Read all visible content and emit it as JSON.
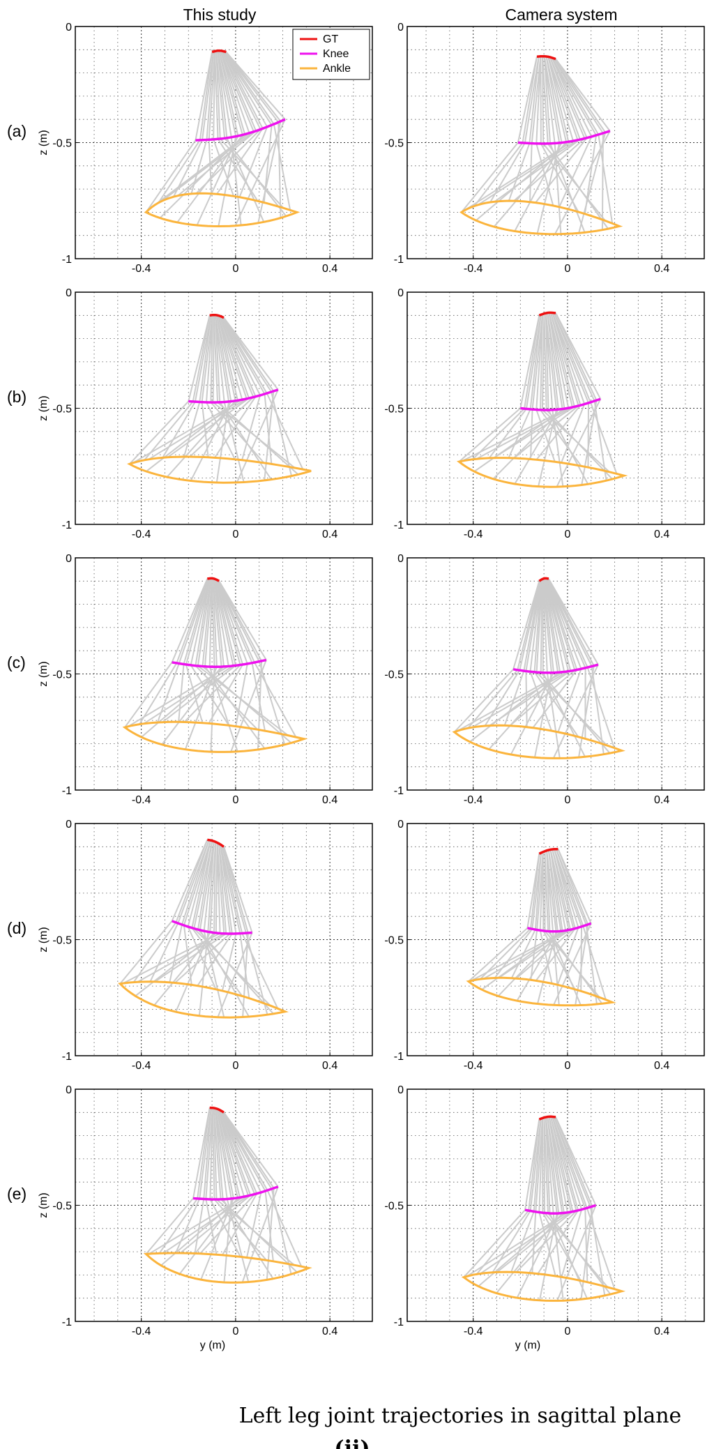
{
  "column_titles": [
    "This study",
    "Camera system"
  ],
  "row_labels": [
    "(a)",
    "(b)",
    "(c)",
    "(d)",
    "(e)"
  ],
  "caption": "Left leg joint trajectories in sagittal plane",
  "caption_sub_prefix": "(",
  "caption_sub_label": "ii",
  "caption_sub_suffix": ")",
  "colors": {
    "GT": "#ee1111",
    "Knee": "#ee11ee",
    "Ankle": "#fbb43c",
    "segment": "#cbcbcb",
    "grid": "#555555"
  },
  "chart_data": {
    "type": "line",
    "xlabel": "y (m)",
    "ylabel": "z (m)",
    "xlim": [
      -0.68,
      0.58
    ],
    "ylim": [
      -1,
      0
    ],
    "xticks": [
      -0.4,
      0,
      0.4
    ],
    "xtick_labels": [
      "-0.4",
      "0",
      "0.4"
    ],
    "yticks": [
      0,
      -0.5,
      -1
    ],
    "ytick_labels": [
      "0",
      "-0.5",
      "-1"
    ],
    "grid": true,
    "legend": {
      "entries": [
        "GT",
        "Knee",
        "Ankle"
      ],
      "placement": "top-right",
      "panel": "(a) This study"
    },
    "panels": [
      {
        "row": "(a)",
        "source": "This study",
        "GT": {
          "y": [
            -0.1,
            -0.04
          ],
          "z": [
            -0.11,
            -0.11
          ]
        },
        "Knee": {
          "y": [
            -0.17,
            0.21
          ],
          "z": [
            -0.49,
            -0.4
          ]
        },
        "Ankle": {
          "y_min": -0.38,
          "y_max": 0.26,
          "z_top": -0.68,
          "z_bottom": -0.88,
          "left_z": -0.8,
          "right_z": -0.8
        }
      },
      {
        "row": "(a)",
        "source": "Camera system",
        "GT": {
          "y": [
            -0.13,
            -0.05
          ],
          "z": [
            -0.13,
            -0.14
          ]
        },
        "Knee": {
          "y": [
            -0.21,
            0.18
          ],
          "z": [
            -0.5,
            -0.45
          ]
        },
        "Ankle": {
          "y_min": -0.45,
          "y_max": 0.22,
          "z_top": -0.72,
          "z_bottom": -0.91,
          "left_z": -0.8,
          "right_z": -0.86
        }
      },
      {
        "row": "(b)",
        "source": "This study",
        "GT": {
          "y": [
            -0.11,
            -0.05
          ],
          "z": [
            -0.1,
            -0.11
          ]
        },
        "Knee": {
          "y": [
            -0.2,
            0.18
          ],
          "z": [
            -0.47,
            -0.42
          ]
        },
        "Ankle": {
          "y_min": -0.45,
          "y_max": 0.32,
          "z_top": -0.69,
          "z_bottom": -0.84,
          "left_z": -0.74,
          "right_z": -0.77
        }
      },
      {
        "row": "(b)",
        "source": "Camera system",
        "GT": {
          "y": [
            -0.12,
            -0.05
          ],
          "z": [
            -0.1,
            -0.09
          ]
        },
        "Knee": {
          "y": [
            -0.2,
            0.14
          ],
          "z": [
            -0.5,
            -0.46
          ]
        },
        "Ankle": {
          "y_min": -0.46,
          "y_max": 0.24,
          "z_top": -0.7,
          "z_bottom": -0.86,
          "left_z": -0.73,
          "right_z": -0.79
        }
      },
      {
        "row": "(c)",
        "source": "This study",
        "GT": {
          "y": [
            -0.12,
            -0.07
          ],
          "z": [
            -0.09,
            -0.1
          ]
        },
        "Knee": {
          "y": [
            -0.27,
            0.13
          ],
          "z": [
            -0.45,
            -0.44
          ]
        },
        "Ankle": {
          "y_min": -0.47,
          "y_max": 0.29,
          "z_top": -0.69,
          "z_bottom": -0.86,
          "left_z": -0.73,
          "right_z": -0.78
        }
      },
      {
        "row": "(c)",
        "source": "Camera system",
        "GT": {
          "y": [
            -0.12,
            -0.08
          ],
          "z": [
            -0.1,
            -0.09
          ]
        },
        "Knee": {
          "y": [
            -0.23,
            0.13
          ],
          "z": [
            -0.48,
            -0.46
          ]
        },
        "Ankle": {
          "y_min": -0.48,
          "y_max": 0.23,
          "z_top": -0.7,
          "z_bottom": -0.88,
          "left_z": -0.75,
          "right_z": -0.83
        }
      },
      {
        "row": "(d)",
        "source": "This study",
        "GT": {
          "y": [
            -0.12,
            -0.05
          ],
          "z": [
            -0.07,
            -0.1
          ]
        },
        "Knee": {
          "y": [
            -0.27,
            0.07
          ],
          "z": [
            -0.42,
            -0.47
          ]
        },
        "Ankle": {
          "y_min": -0.49,
          "y_max": 0.21,
          "z_top": -0.67,
          "z_bottom": -0.85,
          "left_z": -0.69,
          "right_z": -0.81
        }
      },
      {
        "row": "(d)",
        "source": "Camera system",
        "GT": {
          "y": [
            -0.12,
            -0.04
          ],
          "z": [
            -0.13,
            -0.11
          ]
        },
        "Knee": {
          "y": [
            -0.17,
            0.1
          ],
          "z": [
            -0.45,
            -0.43
          ]
        },
        "Ankle": {
          "y_min": -0.42,
          "y_max": 0.19,
          "z_top": -0.65,
          "z_bottom": -0.79,
          "left_z": -0.68,
          "right_z": -0.77
        }
      },
      {
        "row": "(e)",
        "source": "This study",
        "GT": {
          "y": [
            -0.11,
            -0.05
          ],
          "z": [
            -0.08,
            -0.1
          ]
        },
        "Knee": {
          "y": [
            -0.18,
            0.18
          ],
          "z": [
            -0.47,
            -0.42
          ]
        },
        "Ankle": {
          "y_min": -0.38,
          "y_max": 0.31,
          "z_top": -0.7,
          "z_bottom": -0.86,
          "left_z": -0.71,
          "right_z": -0.77
        }
      },
      {
        "row": "(e)",
        "source": "Camera system",
        "GT": {
          "y": [
            -0.12,
            -0.05
          ],
          "z": [
            -0.13,
            -0.12
          ]
        },
        "Knee": {
          "y": [
            -0.18,
            0.12
          ],
          "z": [
            -0.52,
            -0.5
          ]
        },
        "Ankle": {
          "y_min": -0.44,
          "y_max": 0.23,
          "z_top": -0.77,
          "z_bottom": -0.93,
          "left_z": -0.81,
          "right_z": -0.87
        }
      }
    ]
  }
}
